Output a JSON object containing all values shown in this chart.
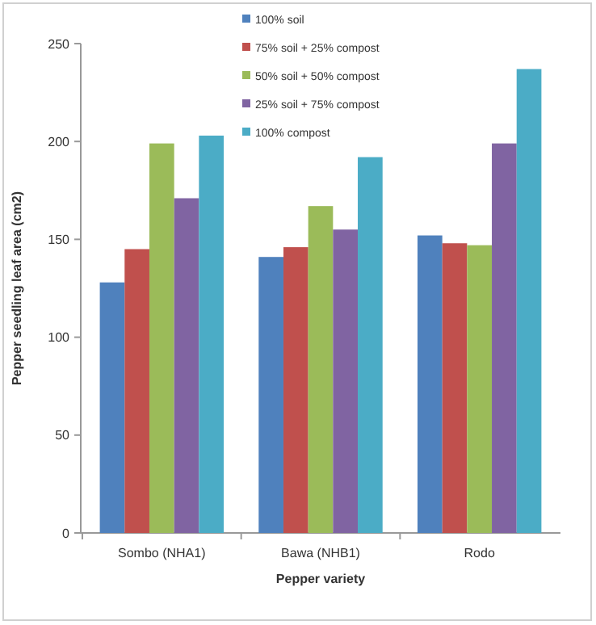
{
  "chart_data": {
    "type": "bar",
    "xlabel": "Pepper variety",
    "ylabel": "Pepper seedling leaf area (cm2)",
    "categories": [
      "Sombo (NHA1)",
      "Bawa (NHB1)",
      "Rodo"
    ],
    "series": [
      {
        "name": "100% soil",
        "color": "#4f81bd",
        "values": [
          128,
          141,
          152
        ]
      },
      {
        "name": "75% soil + 25% compost",
        "color": "#c0504d",
        "values": [
          145,
          146,
          148
        ]
      },
      {
        "name": "50% soil + 50% compost",
        "color": "#9bbb59",
        "values": [
          199,
          167,
          147
        ]
      },
      {
        "name": "25% soil + 75% compost",
        "color": "#8064a2",
        "values": [
          171,
          155,
          199
        ]
      },
      {
        "name": "100% compost",
        "color": "#4bacc6",
        "values": [
          203,
          192,
          237
        ]
      }
    ],
    "ylim": [
      0,
      250
    ],
    "yticks": [
      0,
      50,
      100,
      150,
      200,
      250
    ],
    "legend": "top",
    "grid": false
  }
}
